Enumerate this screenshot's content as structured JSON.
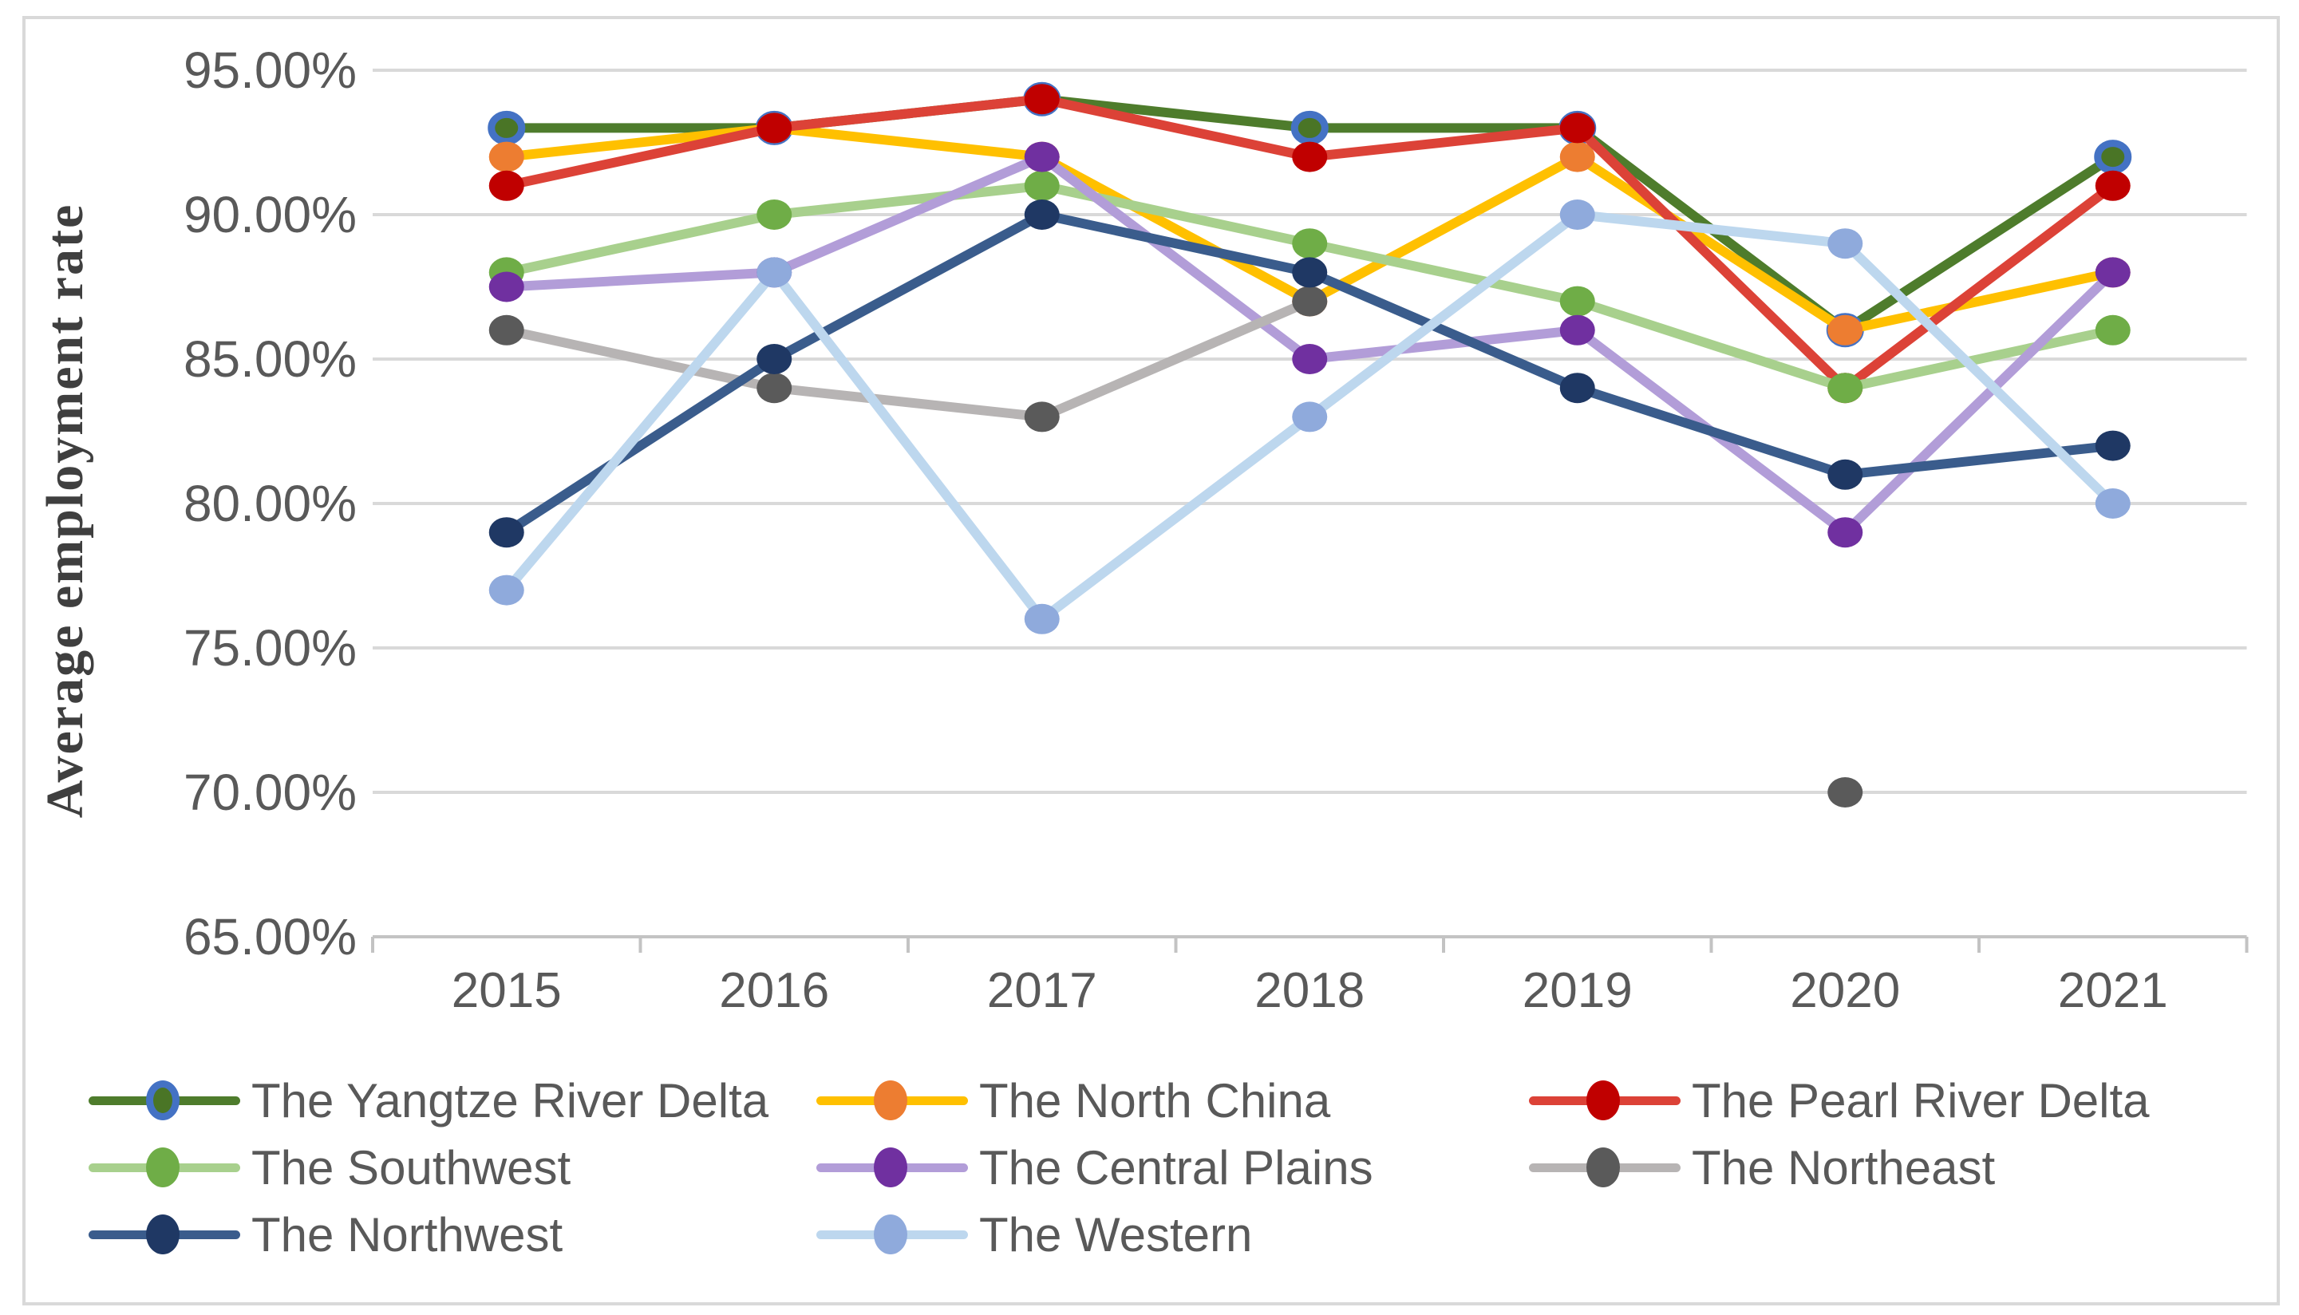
{
  "chart_data": {
    "type": "line",
    "title": "",
    "xlabel": "",
    "ylabel": "Average employment rate",
    "categories": [
      "2015",
      "2016",
      "2017",
      "2018",
      "2019",
      "2020",
      "2021"
    ],
    "y_axis": {
      "min": 65,
      "max": 95,
      "step": 5,
      "unit": "%",
      "grid": true
    },
    "ytick_labels": [
      "95.00%",
      "90.00%",
      "85.00%",
      "80.00%",
      "75.00%",
      "70.00%",
      "65.00%"
    ],
    "legend_position": "bottom",
    "series": [
      {
        "name": "The Yangtze River Delta",
        "values": [
          93,
          93,
          94,
          93,
          93,
          86,
          92
        ],
        "line_color": "#4e7c2c",
        "marker_color": "#4a7526",
        "marker_ring_color": "#4472c4"
      },
      {
        "name": "The North China",
        "values": [
          92,
          93,
          92,
          87,
          92,
          86,
          88
        ],
        "line_color": "#ffc000",
        "marker_color": "#ed7d31"
      },
      {
        "name": "The Pearl River Delta",
        "values": [
          91,
          93,
          94,
          92,
          93,
          84,
          91
        ],
        "line_color": "#dc4237",
        "marker_color": "#c00000"
      },
      {
        "name": "The Southwest",
        "values": [
          88,
          90,
          91,
          89,
          87,
          84,
          86
        ],
        "line_color": "#a8d08d",
        "marker_color": "#6fad47"
      },
      {
        "name": "The Central Plains",
        "values": [
          87.5,
          88,
          92,
          85,
          86,
          79,
          88
        ],
        "line_color": "#b29dd8",
        "marker_color": "#7030a0"
      },
      {
        "name": "The Northeast",
        "values": [
          86,
          84,
          83,
          87,
          null,
          70,
          null
        ],
        "line_color": "#b7b4b4",
        "marker_color": "#5a5a5a"
      },
      {
        "name": "The Northwest",
        "values": [
          79,
          85,
          90,
          88,
          84,
          81,
          82
        ],
        "line_color": "#3a5c8c",
        "marker_color": "#1f3864"
      },
      {
        "name": "The Western",
        "values": [
          77,
          88,
          76,
          83,
          90,
          89,
          80
        ],
        "line_color": "#bdd7ee",
        "marker_color": "#8faadc"
      }
    ],
    "colors": {
      "background": "#ffffff",
      "frame_border": "#d9d9d9",
      "gridline": "#d9d9d9",
      "axis_line": "#c3c3c3",
      "tick_text": "#595959",
      "legend_text": "#595959",
      "axis_title_text": "#3f3f3f"
    }
  }
}
